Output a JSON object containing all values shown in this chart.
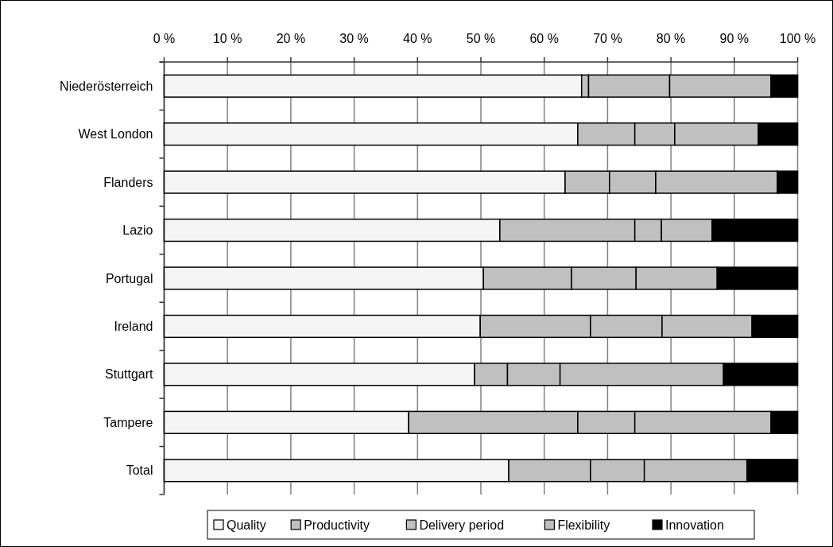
{
  "chart_data": {
    "type": "bar",
    "orientation": "horizontal",
    "stacked": true,
    "categories": [
      "Niederösterreich",
      "West London",
      "Flanders",
      "Lazio",
      "Portugal",
      "Ireland",
      "Stuttgart",
      "Tampere",
      "Total"
    ],
    "series": [
      {
        "name": "Quality",
        "color": "#f5f5f5",
        "values": [
          65.9,
          65.3,
          63.3,
          53.0,
          50.4,
          49.9,
          49.0,
          38.6,
          54.4
        ]
      },
      {
        "name": "Productivity",
        "color": "#c0c0c0",
        "values": [
          1.1,
          9.0,
          7.0,
          21.3,
          13.9,
          17.4,
          5.2,
          26.7,
          12.9
        ]
      },
      {
        "name": "Delivery period",
        "color": "#c0c0c0",
        "values": [
          12.8,
          6.3,
          7.3,
          4.2,
          10.2,
          11.3,
          8.3,
          9.0,
          8.5
        ]
      },
      {
        "name": "Flexibility",
        "color": "#c0c0c0",
        "values": [
          16.0,
          13.2,
          19.2,
          8.0,
          12.8,
          14.2,
          25.8,
          21.5,
          16.2
        ]
      },
      {
        "name": "Innovation",
        "color": "#000000",
        "values": [
          4.2,
          6.2,
          3.2,
          13.5,
          12.7,
          7.2,
          11.7,
          4.2,
          8.0
        ]
      }
    ],
    "xlim": [
      0,
      100
    ],
    "xticks": [
      {
        "value": 0,
        "label": "0 %"
      },
      {
        "value": 10,
        "label": "10 %"
      },
      {
        "value": 20,
        "label": "20 %"
      },
      {
        "value": 30,
        "label": "30 %"
      },
      {
        "value": 40,
        "label": "40 %"
      },
      {
        "value": 50,
        "label": "50 %"
      },
      {
        "value": 60,
        "label": "60 %"
      },
      {
        "value": 70,
        "label": "70 %"
      },
      {
        "value": 80,
        "label": "80 %"
      },
      {
        "value": 90,
        "label": "90 %"
      },
      {
        "value": 100,
        "label": "100 %"
      }
    ],
    "grid": "x",
    "legend": "bottom"
  }
}
